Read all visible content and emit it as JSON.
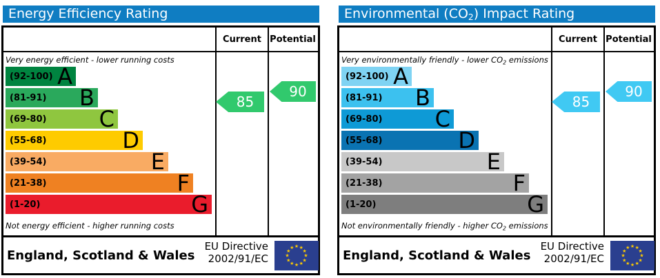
{
  "chart_data": [
    {
      "type": "bar",
      "title": {
        "pre": "Energy Efficiency Rating",
        "sub": "",
        "post": ""
      },
      "header_color": "#0f7dc2",
      "columns": {
        "current": "Current",
        "potential": "Potential"
      },
      "top_label": {
        "pre": "Very energy efficient - lower running costs",
        "sub": "",
        "post": ""
      },
      "bottom_label": {
        "pre": "Not energy efficient - higher running costs",
        "sub": "",
        "post": ""
      },
      "bands": [
        {
          "letter": "A",
          "range": "(92-100)",
          "min": 92,
          "max": 100,
          "color": "#008440"
        },
        {
          "letter": "B",
          "range": "(81-91)",
          "min": 81,
          "max": 91,
          "color": "#2aa95c"
        },
        {
          "letter": "C",
          "range": "(69-80)",
          "min": 69,
          "max": 80,
          "color": "#8fc63f"
        },
        {
          "letter": "D",
          "range": "(55-68)",
          "min": 55,
          "max": 68,
          "color": "#fecb00"
        },
        {
          "letter": "E",
          "range": "(39-54)",
          "min": 39,
          "max": 54,
          "color": "#f9ab63"
        },
        {
          "letter": "F",
          "range": "(21-38)",
          "min": 21,
          "max": 38,
          "color": "#ef8122"
        },
        {
          "letter": "G",
          "range": "(1-20)",
          "min": 1,
          "max": 20,
          "color": "#ea1c2c"
        }
      ],
      "current": {
        "value": 85,
        "band": "B",
        "color": "#31c96d"
      },
      "potential": {
        "value": 90,
        "band": "B",
        "color": "#31c96d"
      },
      "footer": {
        "region": "England, Scotland & Wales",
        "directive_line1": "EU Directive",
        "directive_line2": "2002/91/EC",
        "flag_color": "#2a3f8f",
        "star_color": "#ffcc00"
      }
    },
    {
      "type": "bar",
      "title": {
        "pre": "Environmental (CO",
        "sub": "2",
        "post": ") Impact Rating"
      },
      "header_color": "#0f7dc2",
      "columns": {
        "current": "Current",
        "potential": "Potential"
      },
      "top_label": {
        "pre": "Very environmentally friendly - lower CO",
        "sub": "2",
        "post": " emissions"
      },
      "bottom_label": {
        "pre": "Not environmentally friendly - higher CO",
        "sub": "2",
        "post": " emissions"
      },
      "bands": [
        {
          "letter": "A",
          "range": "(92-100)",
          "min": 92,
          "max": 100,
          "color": "#7fd3f3"
        },
        {
          "letter": "B",
          "range": "(81-91)",
          "min": 81,
          "max": 91,
          "color": "#3cc1ef"
        },
        {
          "letter": "C",
          "range": "(69-80)",
          "min": 69,
          "max": 80,
          "color": "#0e9ad6"
        },
        {
          "letter": "D",
          "range": "(55-68)",
          "min": 55,
          "max": 68,
          "color": "#0a73b2"
        },
        {
          "letter": "E",
          "range": "(39-54)",
          "min": 39,
          "max": 54,
          "color": "#c8c8c8"
        },
        {
          "letter": "F",
          "range": "(21-38)",
          "min": 21,
          "max": 38,
          "color": "#a3a3a3"
        },
        {
          "letter": "G",
          "range": "(1-20)",
          "min": 1,
          "max": 20,
          "color": "#7e7e7e"
        }
      ],
      "current": {
        "value": 85,
        "band": "B",
        "color": "#40c9f3"
      },
      "potential": {
        "value": 90,
        "band": "B",
        "color": "#40c9f3"
      },
      "footer": {
        "region": "England, Scotland & Wales",
        "directive_line1": "EU Directive",
        "directive_line2": "2002/91/EC",
        "flag_color": "#2a3f8f",
        "star_color": "#ffcc00"
      }
    }
  ]
}
